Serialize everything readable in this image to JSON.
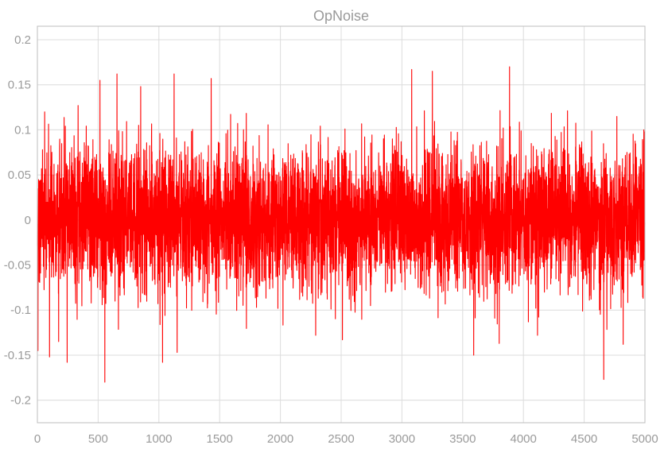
{
  "chart_data": {
    "type": "line",
    "title": "OpNoise",
    "xlabel": "",
    "ylabel": "",
    "xlim": [
      0,
      5000
    ],
    "ylim": [
      -0.225,
      0.215
    ],
    "x_ticks": [
      0,
      500,
      1000,
      1500,
      2000,
      2500,
      3000,
      3500,
      4000,
      4500,
      5000
    ],
    "y_ticks": [
      -0.2,
      -0.15,
      -0.1,
      -0.05,
      0,
      0.05,
      0.1,
      0.15,
      0.2
    ],
    "x_tick_labels": [
      "0",
      "500",
      "1000",
      "1500",
      "2000",
      "2500",
      "3000",
      "3500",
      "4000",
      "4500",
      "5000"
    ],
    "y_tick_labels": [
      "-0.2",
      "-0.15",
      "-0.1",
      "-0.05",
      "0",
      "0.05",
      "0.1",
      "0.15",
      "0.2"
    ],
    "grid": true,
    "series": [
      {
        "color": "#ff0000",
        "sample_count": 5000,
        "mean": 0,
        "std": 0.04,
        "peaks": [
          {
            "x": 5,
            "y": -0.145
          },
          {
            "x": 60,
            "y": 0.12
          },
          {
            "x": 100,
            "y": -0.152
          },
          {
            "x": 175,
            "y": -0.135
          },
          {
            "x": 245,
            "y": -0.158
          },
          {
            "x": 335,
            "y": 0.127
          },
          {
            "x": 515,
            "y": 0.155
          },
          {
            "x": 555,
            "y": -0.18
          },
          {
            "x": 655,
            "y": 0.162
          },
          {
            "x": 850,
            "y": 0.148
          },
          {
            "x": 1030,
            "y": -0.158
          },
          {
            "x": 1125,
            "y": 0.162
          },
          {
            "x": 1150,
            "y": -0.147
          },
          {
            "x": 1430,
            "y": 0.157
          },
          {
            "x": 2290,
            "y": -0.128
          },
          {
            "x": 2510,
            "y": -0.133
          },
          {
            "x": 3080,
            "y": 0.167
          },
          {
            "x": 3250,
            "y": 0.165
          },
          {
            "x": 3590,
            "y": -0.15
          },
          {
            "x": 3800,
            "y": -0.137
          },
          {
            "x": 3885,
            "y": 0.17
          },
          {
            "x": 4115,
            "y": -0.128
          },
          {
            "x": 4660,
            "y": -0.177
          },
          {
            "x": 4820,
            "y": -0.138
          },
          {
            "x": 4990,
            "y": 0.1
          }
        ]
      }
    ]
  }
}
